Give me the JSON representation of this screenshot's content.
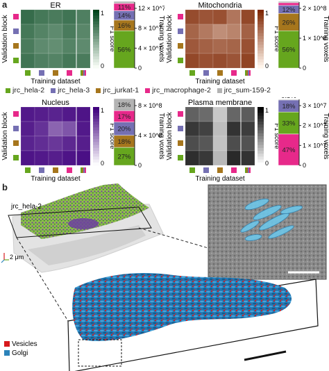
{
  "panel_a_label": "a",
  "panel_b_label": "b",
  "colors": {
    "hela2": "#66a61e",
    "hela3": "#7570b3",
    "jurkat1": "#a6761d",
    "macrophage2": "#e7298a",
    "sum1592": "#b3b3b3"
  },
  "legend": [
    {
      "name": "jrc_hela-2",
      "color": "#66a61e"
    },
    {
      "name": "jrc_hela-3",
      "color": "#7570b3"
    },
    {
      "name": "jrc_jurkat-1",
      "color": "#a6761d"
    },
    {
      "name": "jrc_macrophage-2",
      "color": "#e7298a"
    },
    {
      "name": "jrc_sum-159-2",
      "color": "#b3b3b3"
    }
  ],
  "chart_data": [
    {
      "type": "heatmap",
      "title": "ER",
      "xlabel": "Training dataset",
      "ylabel": "Validation block",
      "colorbar_label": "F1 score",
      "colorbar_ticks": [
        "1",
        "0"
      ],
      "colormap": [
        "#f7fcf5",
        "#00441b"
      ],
      "values": [
        [
          0.78,
          0.72,
          0.7,
          0.74,
          0.68
        ],
        [
          0.72,
          0.66,
          0.62,
          0.7,
          0.64
        ],
        [
          0.7,
          0.62,
          0.6,
          0.66,
          0.62
        ],
        [
          0.74,
          0.68,
          0.66,
          0.72,
          0.7
        ]
      ],
      "voxel_axis_label": "Training voxels",
      "voxel_ticks": [
        "12 × 10^7",
        "8 × 10^7",
        "4 × 10^7",
        "0"
      ],
      "voxel_max": 140000000,
      "voxel_bar": [
        {
          "label": "56%",
          "color": "#66a61e",
          "fraction": 0.56
        },
        {
          "label": "16%",
          "color": "#a6761d",
          "fraction": 0.16
        },
        {
          "label": "14%",
          "color": "#7570b3",
          "fraction": 0.14
        },
        {
          "label": "11%",
          "color": "#e7298a",
          "fraction": 0.11
        },
        {
          "label": "3%",
          "color": "#b3b3b3",
          "fraction": 0.03
        }
      ]
    },
    {
      "type": "heatmap",
      "title": "Mitochondria",
      "xlabel": "Training dataset",
      "ylabel": "Validation block",
      "colorbar_label": "F1 score",
      "colorbar_ticks": [
        "1",
        "0"
      ],
      "colormap": [
        "#fff5eb",
        "#7f2704"
      ],
      "values": [
        [
          0.82,
          0.78,
          0.8,
          0.62,
          0.84
        ],
        [
          0.7,
          0.6,
          0.5,
          0.55,
          0.72
        ],
        [
          0.76,
          0.72,
          0.68,
          0.7,
          0.8
        ],
        [
          0.84,
          0.8,
          0.82,
          0.78,
          0.86
        ]
      ],
      "voxel_axis_label": "Training voxels",
      "voxel_ticks": [
        "2 × 10^8",
        "1 × 10^8",
        "0"
      ],
      "voxel_max": 280000000,
      "voxel_bar": [
        {
          "label": "56%",
          "color": "#66a61e",
          "fraction": 0.56
        },
        {
          "label": "26%",
          "color": "#a6761d",
          "fraction": 0.26
        },
        {
          "label": "12%",
          "color": "#7570b3",
          "fraction": 0.12
        },
        {
          "label": "4%",
          "color": "#e7298a",
          "fraction": 0.04
        },
        {
          "label": "2%",
          "color": "#b3b3b3",
          "fraction": 0.02
        }
      ]
    },
    {
      "type": "heatmap",
      "title": "Nucleus",
      "xlabel": "Training dataset",
      "ylabel": "Validation block",
      "colorbar_label": "F1 score",
      "colorbar_ticks": [
        "1",
        "0"
      ],
      "colormap": [
        "#fcfbfd",
        "#3f007d"
      ],
      "values": [
        [
          0.9,
          0.88,
          0.86,
          0.9,
          0.92
        ],
        [
          0.88,
          0.8,
          0.6,
          0.66,
          0.9
        ],
        [
          0.86,
          0.82,
          0.78,
          0.84,
          0.88
        ],
        [
          0.92,
          0.9,
          0.88,
          0.92,
          0.94
        ]
      ],
      "voxel_axis_label": "Training voxels",
      "voxel_ticks": [
        "8 × 10^8",
        "4 × 10^8",
        "0"
      ],
      "voxel_max": 1000000000,
      "voxel_bar": [
        {
          "label": "27%",
          "color": "#66a61e",
          "fraction": 0.27
        },
        {
          "label": "18%",
          "color": "#a6761d",
          "fraction": 0.18
        },
        {
          "label": "20%",
          "color": "#7570b3",
          "fraction": 0.2
        },
        {
          "label": "17%",
          "color": "#e7298a",
          "fraction": 0.17
        },
        {
          "label": "18%",
          "color": "#b3b3b3",
          "fraction": 0.18
        }
      ]
    },
    {
      "type": "heatmap",
      "title": "Plasma membrane",
      "xlabel": "Training dataset",
      "ylabel": "Validation block",
      "colorbar_label": "F1 score",
      "colorbar_ticks": [
        "1",
        "0"
      ],
      "colormap": [
        "#ffffff",
        "#000000"
      ],
      "values": [
        [
          0.62,
          0.58,
          0.22,
          0.6,
          0.64
        ],
        [
          0.78,
          0.74,
          0.26,
          0.8,
          0.76
        ],
        [
          0.7,
          0.66,
          0.24,
          0.7,
          0.68
        ],
        [
          0.82,
          0.78,
          0.28,
          0.84,
          0.8
        ]
      ],
      "voxel_axis_label": "Training voxels",
      "voxel_ticks": [
        "3 × 10^7",
        "2 × 10^7",
        "1 × 10^7",
        "0"
      ],
      "voxel_max": 35000000,
      "voxel_bar": [
        {
          "label": "47%",
          "color": "#e7298a",
          "fraction": 0.47
        },
        {
          "label": "33%",
          "color": "#66a61e",
          "fraction": 0.33
        },
        {
          "label": "18%",
          "color": "#7570b3",
          "fraction": 0.18
        },
        {
          "label": "0.5%",
          "color": "#b3b3b3",
          "fraction": 0.01
        }
      ]
    }
  ],
  "panel_b": {
    "cell_label": "jrc_hela-2",
    "scale_label": "2 μm",
    "legend": [
      {
        "name": "Vesicles",
        "color": "#d7191c"
      },
      {
        "name": "Golgi",
        "color": "#2b83ba"
      }
    ]
  }
}
